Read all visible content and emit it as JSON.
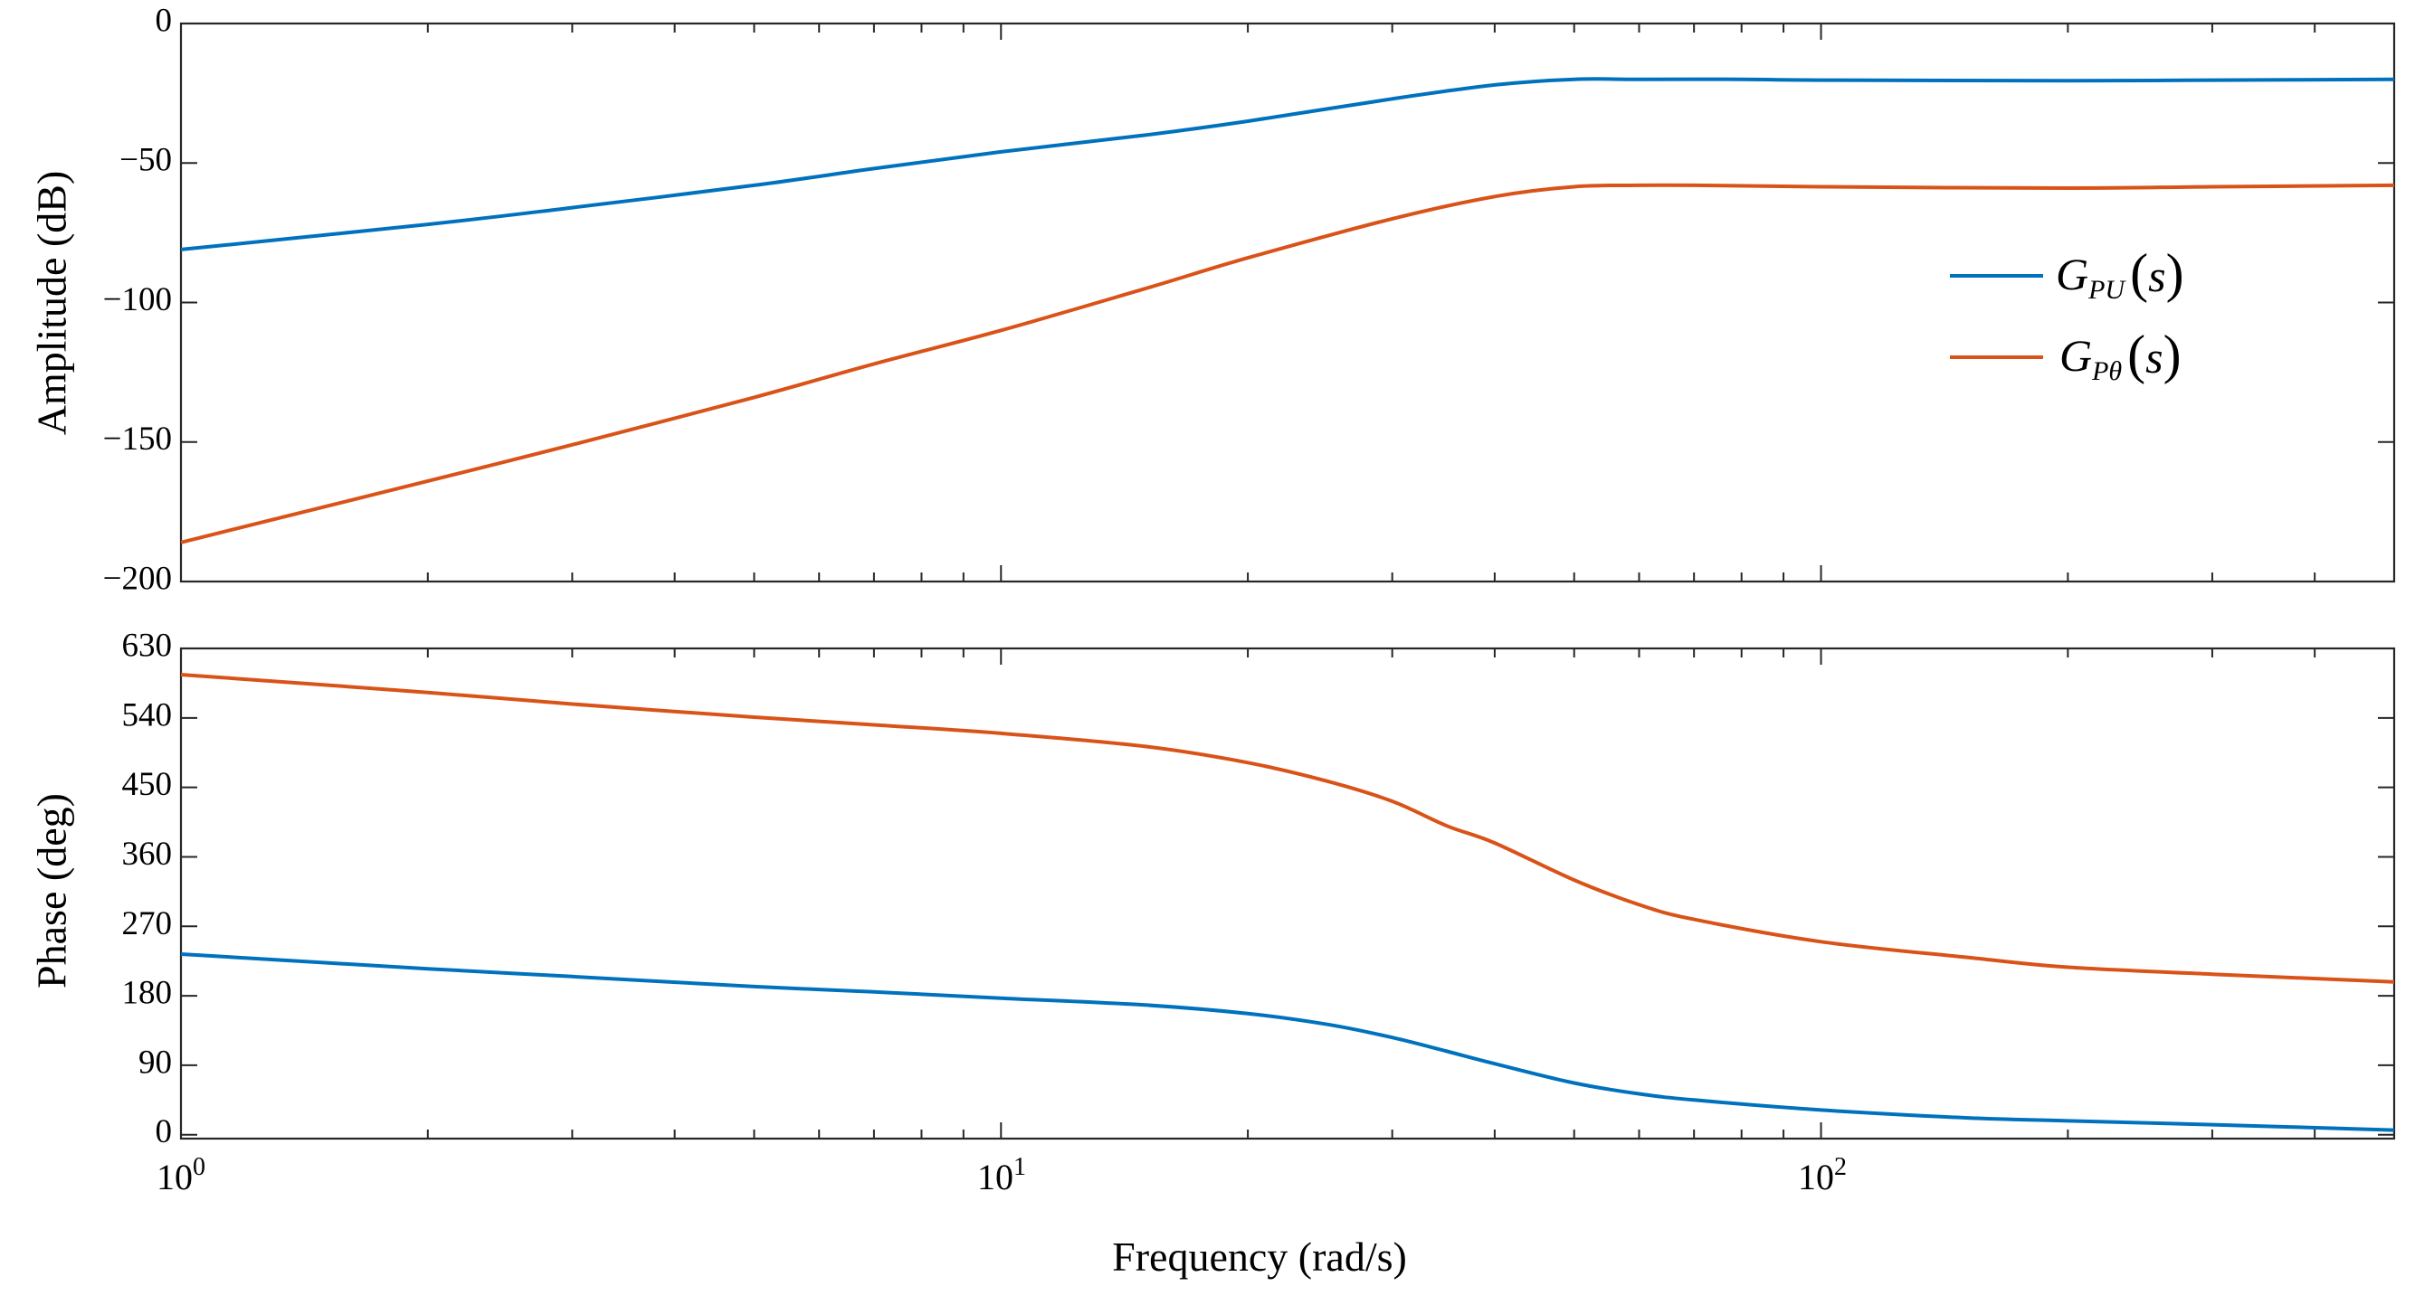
{
  "chart_data": [
    {
      "type": "line",
      "panel": "amplitude",
      "ylabel": "Amplitude (dB)",
      "xscale": "log",
      "xlim": [
        1,
        500
      ],
      "ylim": [
        -200,
        0
      ],
      "yticks": [
        0,
        -50,
        -100,
        -150,
        -200
      ],
      "ytick_labels": [
        "0",
        "−50",
        "−100",
        "−150",
        "−200"
      ],
      "grid": false,
      "legend_position": "right",
      "series": [
        {
          "name": "G_PU(s)",
          "color": "#0072BD",
          "points": [
            [
              1,
              -81
            ],
            [
              2,
              -72
            ],
            [
              3,
              -66
            ],
            [
              5,
              -58
            ],
            [
              7,
              -52
            ],
            [
              10,
              -46
            ],
            [
              15,
              -40
            ],
            [
              20,
              -35
            ],
            [
              30,
              -27
            ],
            [
              40,
              -22
            ],
            [
              50,
              -20
            ],
            [
              60,
              -20
            ],
            [
              80,
              -20
            ],
            [
              100,
              -20.3
            ],
            [
              200,
              -20.5
            ],
            [
              300,
              -20.3
            ],
            [
              500,
              -20
            ]
          ]
        },
        {
          "name": "G_Pθ(s)",
          "color": "#D95319",
          "points": [
            [
              1,
              -186
            ],
            [
              2,
              -164
            ],
            [
              3,
              -151
            ],
            [
              5,
              -134
            ],
            [
              7,
              -122
            ],
            [
              10,
              -110
            ],
            [
              15,
              -95
            ],
            [
              20,
              -84
            ],
            [
              30,
              -70
            ],
            [
              40,
              -62
            ],
            [
              50,
              -58.5
            ],
            [
              60,
              -58
            ],
            [
              70,
              -58
            ],
            [
              100,
              -58.5
            ],
            [
              200,
              -59
            ],
            [
              300,
              -58.5
            ],
            [
              500,
              -58
            ]
          ]
        }
      ]
    },
    {
      "type": "line",
      "panel": "phase",
      "ylabel": "Phase (deg)",
      "xlabel": "Frequency (rad/s)",
      "xscale": "log",
      "xlim": [
        1,
        500
      ],
      "ylim": [
        -5,
        630
      ],
      "yticks": [
        0,
        90,
        180,
        270,
        360,
        450,
        540,
        630
      ],
      "ytick_labels": [
        "0",
        "90",
        "180",
        "270",
        "360",
        "450",
        "540",
        "630"
      ],
      "xticks": [
        1,
        10,
        100
      ],
      "grid": false,
      "series": [
        {
          "name": "G_PU(s)",
          "color": "#0072BD",
          "points": [
            [
              1,
              234
            ],
            [
              2,
              215
            ],
            [
              3,
              205
            ],
            [
              5,
              192
            ],
            [
              7,
              185
            ],
            [
              10,
              177
            ],
            [
              15,
              168
            ],
            [
              20,
              157
            ],
            [
              25,
              143
            ],
            [
              30,
              126
            ],
            [
              35,
              108
            ],
            [
              40,
              92
            ],
            [
              50,
              67
            ],
            [
              60,
              53
            ],
            [
              70,
              45
            ],
            [
              100,
              32
            ],
            [
              150,
              22
            ],
            [
              200,
              18
            ],
            [
              300,
              13
            ],
            [
              500,
              6
            ]
          ]
        },
        {
          "name": "G_Pθ(s)",
          "color": "#D95319",
          "points": [
            [
              1,
              596
            ],
            [
              2,
              573
            ],
            [
              3,
              558
            ],
            [
              5,
              541
            ],
            [
              7,
              531
            ],
            [
              10,
              520
            ],
            [
              15,
              503
            ],
            [
              20,
              482
            ],
            [
              25,
              458
            ],
            [
              30,
              432
            ],
            [
              35,
              400
            ],
            [
              40,
              378
            ],
            [
              50,
              330
            ],
            [
              60,
              298
            ],
            [
              70,
              279
            ],
            [
              100,
              250
            ],
            [
              150,
              230
            ],
            [
              200,
              217
            ],
            [
              300,
              208
            ],
            [
              500,
              198
            ]
          ]
        }
      ]
    }
  ],
  "legend": {
    "entries": [
      {
        "main": "G",
        "sub": "PU",
        "arg": "s",
        "color": "#0072BD"
      },
      {
        "main": "G",
        "sub": "Pθ",
        "arg": "s",
        "color": "#D95319"
      }
    ]
  },
  "x_axis": {
    "tick_labels": [
      {
        "base": "10",
        "exp": "0"
      },
      {
        "base": "10",
        "exp": "1"
      },
      {
        "base": "10",
        "exp": "2"
      }
    ]
  }
}
